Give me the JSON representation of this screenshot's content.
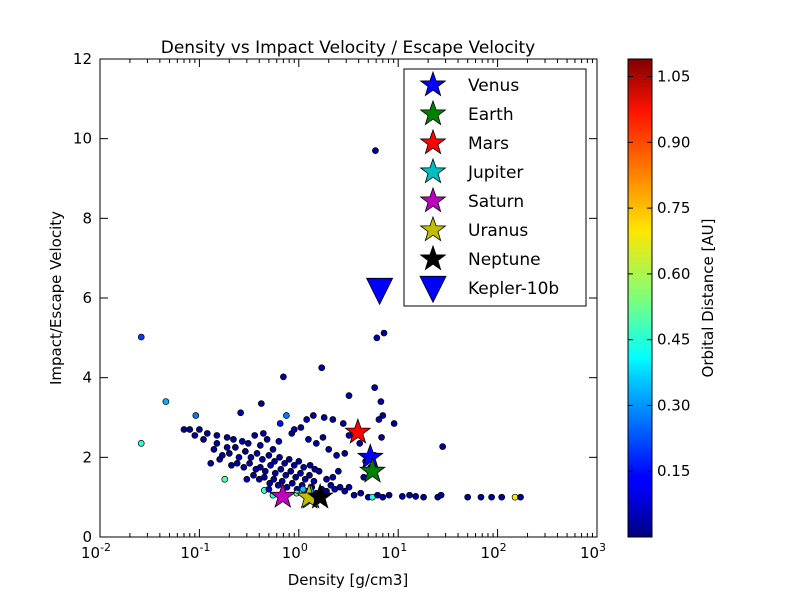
{
  "chart_data": {
    "type": "scatter",
    "title": "Density vs Impact Velocity / Escape Velocity",
    "xlabel": "Density [g/cm3]",
    "ylabel": "Impact/Escape Velocity",
    "xscale": "log",
    "xlim": [
      0.01,
      1000
    ],
    "ylim": [
      0,
      12
    ],
    "x_ticks": [
      {
        "value": 0.01,
        "base": "10",
        "exp": "-2"
      },
      {
        "value": 0.1,
        "base": "10",
        "exp": "-1"
      },
      {
        "value": 1,
        "base": "10",
        "exp": "0"
      },
      {
        "value": 10,
        "base": "10",
        "exp": "1"
      },
      {
        "value": 100,
        "base": "10",
        "exp": "2"
      },
      {
        "value": 1000,
        "base": "10",
        "exp": "3"
      }
    ],
    "y_ticks": [
      "0",
      "2",
      "4",
      "6",
      "8",
      "10",
      "12"
    ],
    "colorbar": {
      "label": "Orbital Distance [AU]",
      "colormap": "jet",
      "range": [
        0.0,
        1.09
      ],
      "ticks": [
        "0.15",
        "0.30",
        "0.45",
        "0.60",
        "0.75",
        "0.90",
        "1.05"
      ]
    },
    "legend_position": "top-right",
    "grid": false,
    "planets": [
      {
        "name": "Venus",
        "x": 5.24,
        "y": 2.0,
        "color": "#0000ff",
        "marker": "star"
      },
      {
        "name": "Earth",
        "x": 5.51,
        "y": 1.65,
        "color": "#008000",
        "marker": "star"
      },
      {
        "name": "Mars",
        "x": 3.93,
        "y": 2.63,
        "color": "#ff0000",
        "marker": "star"
      },
      {
        "name": "Jupiter",
        "x": 1.33,
        "y": 1.0,
        "color": "#00bfbf",
        "marker": "star"
      },
      {
        "name": "Saturn",
        "x": 0.69,
        "y": 1.02,
        "color": "#bf00bf",
        "marker": "star"
      },
      {
        "name": "Uranus",
        "x": 1.27,
        "y": 1.0,
        "color": "#bfbf00",
        "marker": "star"
      },
      {
        "name": "Neptune",
        "x": 1.64,
        "y": 1.0,
        "color": "#000000",
        "marker": "star"
      },
      {
        "name": "Kepler-10b",
        "x": 6.5,
        "y": 6.2,
        "color": "#0000ff",
        "marker": "triangle-down"
      }
    ],
    "exoplanets": [
      [
        0.026,
        5.02,
        0.2
      ],
      [
        0.046,
        3.4,
        0.33
      ],
      [
        0.026,
        2.35,
        0.45
      ],
      [
        0.092,
        3.05,
        0.27
      ],
      [
        0.18,
        1.45,
        0.5
      ],
      [
        0.45,
        1.17,
        0.48
      ],
      [
        5.9,
        9.7,
        0.02
      ],
      [
        7.2,
        5.12,
        0.03
      ],
      [
        6.1,
        5.0,
        0.05
      ],
      [
        0.7,
        4.02,
        0.04
      ],
      [
        1.7,
        4.25,
        0.05
      ],
      [
        5.8,
        3.75,
        0.04
      ],
      [
        3.2,
        3.55,
        0.05
      ],
      [
        6.7,
        3.4,
        0.04
      ],
      [
        7.0,
        3.05,
        0.03
      ],
      [
        6.4,
        2.95,
        0.06
      ],
      [
        9.1,
        2.85,
        0.02
      ],
      [
        1.8,
        3.0,
        0.03
      ],
      [
        2.2,
        2.95,
        0.05
      ],
      [
        2.8,
        2.85,
        0.04
      ],
      [
        1.4,
        3.05,
        0.03
      ],
      [
        1.2,
        2.95,
        0.04
      ],
      [
        0.75,
        3.05,
        0.27
      ],
      [
        0.65,
        2.85,
        0.15
      ],
      [
        0.42,
        3.35,
        0.03
      ],
      [
        0.26,
        3.12,
        0.04
      ],
      [
        0.08,
        2.7,
        0.02
      ],
      [
        0.1,
        2.7,
        0.05
      ],
      [
        0.12,
        2.6,
        0.03
      ],
      [
        0.11,
        2.45,
        0.03
      ],
      [
        0.15,
        2.55,
        0.04
      ],
      [
        0.19,
        2.5,
        0.03
      ],
      [
        0.22,
        2.45,
        0.03
      ],
      [
        0.27,
        2.4,
        0.04
      ],
      [
        0.31,
        2.35,
        0.02
      ],
      [
        0.36,
        2.55,
        0.03
      ],
      [
        0.41,
        2.3,
        0.04
      ],
      [
        0.48,
        2.45,
        0.03
      ],
      [
        0.55,
        2.2,
        0.02
      ],
      [
        0.63,
        2.4,
        0.05
      ],
      [
        0.85,
        2.6,
        0.04
      ],
      [
        0.9,
        2.7,
        0.04
      ],
      [
        1.05,
        2.75,
        0.03
      ],
      [
        1.25,
        2.45,
        0.05
      ],
      [
        1.5,
        2.35,
        0.04
      ],
      [
        1.75,
        2.5,
        0.02
      ],
      [
        2.0,
        2.2,
        0.03
      ],
      [
        2.4,
        2.05,
        0.04
      ],
      [
        2.9,
        2.1,
        0.02
      ],
      [
        0.14,
        2.2,
        0.03
      ],
      [
        0.17,
        2.05,
        0.04
      ],
      [
        0.2,
        2.1,
        0.03
      ],
      [
        0.23,
        2.25,
        0.02
      ],
      [
        0.25,
        2.0,
        0.04
      ],
      [
        0.29,
        2.15,
        0.03
      ],
      [
        0.33,
        2.0,
        0.05
      ],
      [
        0.38,
        2.1,
        0.03
      ],
      [
        0.43,
        1.95,
        0.04
      ],
      [
        0.5,
        2.05,
        0.02
      ],
      [
        0.57,
        1.9,
        0.03
      ],
      [
        0.64,
        2.0,
        0.04
      ],
      [
        0.72,
        1.85,
        0.03
      ],
      [
        0.8,
        1.95,
        0.02
      ],
      [
        0.9,
        1.8,
        0.04
      ],
      [
        1.0,
        1.9,
        0.03
      ],
      [
        1.12,
        1.75,
        0.05
      ],
      [
        1.3,
        1.8,
        0.03
      ],
      [
        1.45,
        1.7,
        0.04
      ],
      [
        1.6,
        1.65,
        0.03
      ],
      [
        0.13,
        1.85,
        0.04
      ],
      [
        0.16,
        1.95,
        0.03
      ],
      [
        0.21,
        1.8,
        0.02
      ],
      [
        0.24,
        1.85,
        0.04
      ],
      [
        0.28,
        1.75,
        0.03
      ],
      [
        0.32,
        1.85,
        0.03
      ],
      [
        0.37,
        1.7,
        0.04
      ],
      [
        0.41,
        1.75,
        0.02
      ],
      [
        0.46,
        1.65,
        0.03
      ],
      [
        0.52,
        1.8,
        0.05
      ],
      [
        0.58,
        1.6,
        0.04
      ],
      [
        0.66,
        1.7,
        0.03
      ],
      [
        0.74,
        1.55,
        0.04
      ],
      [
        0.83,
        1.65,
        0.02
      ],
      [
        0.93,
        1.5,
        0.03
      ],
      [
        1.04,
        1.6,
        0.04
      ],
      [
        1.16,
        1.45,
        0.03
      ],
      [
        1.28,
        1.55,
        0.02
      ],
      [
        1.42,
        1.4,
        0.04
      ],
      [
        0.35,
        1.55,
        0.03
      ],
      [
        0.4,
        1.45,
        0.04
      ],
      [
        0.45,
        1.5,
        0.02
      ],
      [
        0.51,
        1.35,
        0.03
      ],
      [
        0.56,
        1.45,
        0.04
      ],
      [
        0.62,
        1.3,
        0.03
      ],
      [
        0.68,
        1.4,
        0.02
      ],
      [
        0.76,
        1.25,
        0.04
      ],
      [
        0.86,
        1.35,
        0.03
      ],
      [
        0.96,
        1.2,
        0.04
      ],
      [
        1.08,
        1.3,
        0.03
      ],
      [
        1.2,
        1.15,
        0.02
      ],
      [
        1.35,
        1.25,
        0.04
      ],
      [
        1.5,
        1.1,
        0.03
      ],
      [
        1.7,
        1.2,
        0.04
      ],
      [
        1.9,
        1.15,
        0.02
      ],
      [
        2.1,
        1.3,
        0.03
      ],
      [
        2.3,
        1.2,
        0.04
      ],
      [
        2.6,
        1.25,
        0.03
      ],
      [
        2.9,
        1.15,
        0.02
      ],
      [
        3.2,
        1.25,
        0.04
      ],
      [
        0.5,
        1.2,
        0.1
      ],
      [
        0.3,
        1.45,
        0.06
      ],
      [
        0.55,
        1.05,
        0.45
      ],
      [
        0.95,
        1.1,
        0.5
      ],
      [
        1.3,
        1.05,
        0.42
      ],
      [
        1.1,
        1.2,
        0.35
      ],
      [
        3.6,
        1.05,
        0.04
      ],
      [
        4.2,
        1.1,
        0.03
      ],
      [
        5.0,
        1.0,
        0.05
      ],
      [
        5.5,
        1.0,
        0.45
      ],
      [
        6.2,
        1.05,
        0.03
      ],
      [
        7.0,
        1.0,
        0.04
      ],
      [
        8.1,
        1.05,
        0.02
      ],
      [
        11,
        1.02,
        0.03
      ],
      [
        13,
        1.05,
        0.04
      ],
      [
        15,
        1.02,
        0.03
      ],
      [
        18,
        1.0,
        0.02
      ],
      [
        25,
        1.0,
        0.04
      ],
      [
        27,
        1.05,
        0.03
      ],
      [
        50,
        1.0,
        0.03
      ],
      [
        68,
        1.0,
        0.02
      ],
      [
        87,
        1.0,
        0.04
      ],
      [
        110,
        1.0,
        0.03
      ],
      [
        150,
        1.0,
        0.7
      ],
      [
        170,
        1.0,
        0.03
      ],
      [
        28,
        2.27,
        0.03
      ],
      [
        3.2,
        2.55,
        0.05
      ],
      [
        4.1,
        2.35,
        0.04
      ],
      [
        4.7,
        1.9,
        0.03
      ],
      [
        5.3,
        1.75,
        0.05
      ],
      [
        4.5,
        1.5,
        0.04
      ],
      [
        5.8,
        2.05,
        0.03
      ],
      [
        6.8,
        2.5,
        0.04
      ],
      [
        2.5,
        1.65,
        0.03
      ],
      [
        2.2,
        1.5,
        0.04
      ],
      [
        1.9,
        1.45,
        0.03
      ],
      [
        0.09,
        2.55,
        0.04
      ],
      [
        0.07,
        2.7,
        0.03
      ],
      [
        0.15,
        2.35,
        0.02
      ],
      [
        0.19,
        2.25,
        0.05
      ],
      [
        0.44,
        2.6,
        0.04
      ]
    ]
  }
}
